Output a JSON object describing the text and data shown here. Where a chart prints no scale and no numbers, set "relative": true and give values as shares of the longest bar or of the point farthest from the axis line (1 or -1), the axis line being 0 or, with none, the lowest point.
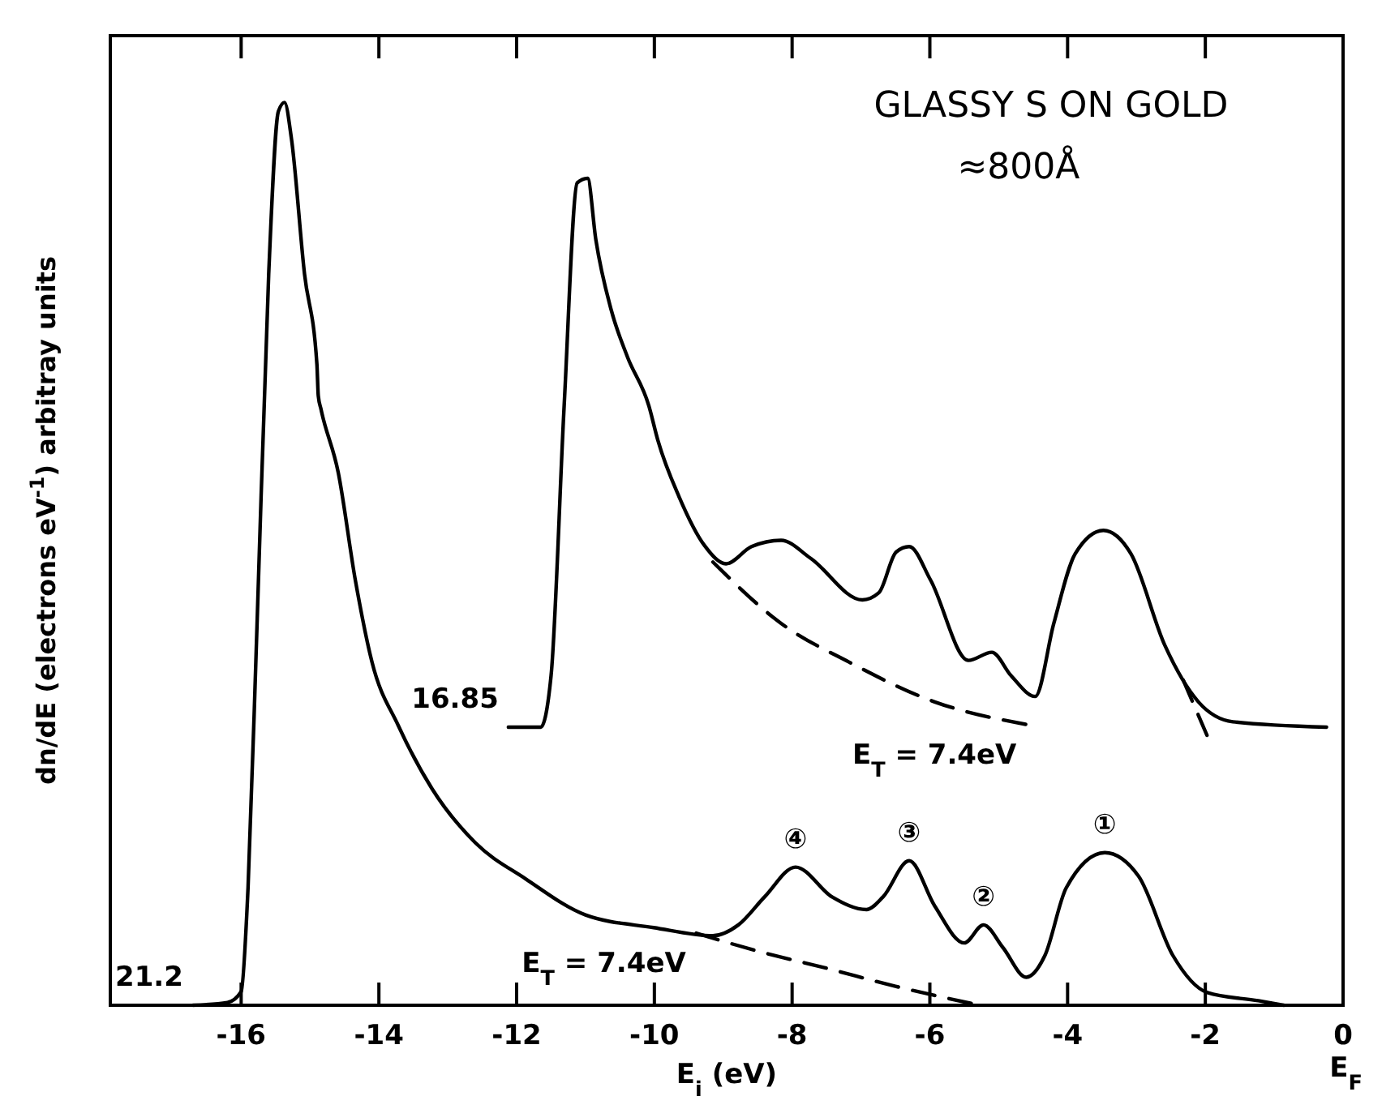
{
  "chart_data": {
    "type": "line",
    "title": "GLASSY S ON GOLD",
    "subtitle": "≈800Å",
    "xlabel": "E$_{i}$ (eV)",
    "ylabel": "dn/dE (electrons eV$^{-1}$) arbitray units",
    "relative": true,
    "xlim": [
      -17.9,
      0
    ],
    "xticks": [
      -16,
      -14,
      -12,
      -10,
      -8,
      -6,
      -4,
      -2,
      0
    ],
    "series": [
      {
        "color": "#000000",
        "line_style": "solid",
        "x": [
          -16.7,
          -16.2,
          -16.0,
          -15.9,
          -15.77,
          -15.6,
          -15.46,
          -15.37,
          -15.27,
          -15.08,
          -14.9,
          -14.88,
          -14.84,
          -14.59,
          -14.34,
          -14.1,
          -13.72,
          -13.23,
          -12.6,
          -11.87,
          -11.0,
          -10.01,
          -9.15,
          -8.78,
          -8.4,
          -7.95,
          -7.42,
          -6.92,
          -6.68,
          -6.3,
          -5.93,
          -5.5,
          -5.22,
          -4.94,
          -4.6,
          -4.33,
          -4.02,
          -3.46,
          -2.97,
          -2.47,
          -1.97,
          -1.23,
          -0.86
        ],
        "values": [
          0,
          0.003,
          0.015,
          0.13,
          0.42,
          0.81,
          0.99,
          1,
          0.96,
          0.81,
          0.71,
          0.675,
          0.66,
          0.59,
          0.47,
          0.38,
          0.31,
          0.24,
          0.18,
          0.14,
          0.1,
          0.086,
          0.077,
          0.089,
          0.12,
          0.153,
          0.12,
          0.106,
          0.12,
          0.16,
          0.11,
          0.069,
          0.089,
          0.064,
          0.031,
          0.055,
          0.13,
          0.169,
          0.143,
          0.055,
          0.014,
          0.005,
          0
        ]
      },
      {
        "color": "#000000",
        "line_style": "dashed",
        "x": [
          -5.4,
          -6.5,
          -7.5,
          -8.5,
          -9.4
        ],
        "values": [
          0.002,
          0.021,
          0.041,
          0.06,
          0.08
        ]
      },
      {
        "color": "#000000",
        "line_style": "solid",
        "x": [
          -12.12,
          -11.65,
          -11.5,
          -11.31,
          -11.12,
          -10.97,
          -10.85,
          -10.63,
          -10.39,
          -10.08,
          -9.95,
          -9.64,
          -9.27,
          -8.96,
          -8.59,
          -8.16,
          -7.73,
          -6.98,
          -6.74,
          -6.49,
          -6.3,
          -5.99,
          -5.44,
          -5.1,
          -4.82,
          -4.47,
          -4.2,
          -3.89,
          -3.48,
          -3.08,
          -2.59,
          -2.1,
          -1.6,
          -0.24
        ],
        "values": [
          0.308,
          0.308,
          0.365,
          0.664,
          0.911,
          0.916,
          0.848,
          0.771,
          0.718,
          0.664,
          0.626,
          0.563,
          0.509,
          0.489,
          0.508,
          0.515,
          0.495,
          0.449,
          0.457,
          0.502,
          0.508,
          0.471,
          0.382,
          0.391,
          0.365,
          0.342,
          0.423,
          0.5,
          0.526,
          0.5,
          0.399,
          0.336,
          0.314,
          0.308
        ]
      },
      {
        "color": "#000000",
        "line_style": "dashed",
        "x": [
          -9.15,
          -8.16,
          -7.17,
          -5.93,
          -4.6
        ],
        "values": [
          0.491,
          0.423,
          0.38,
          0.336,
          0.311
        ]
      },
      {
        "color": "#000000",
        "line_style": "dashed",
        "x": [
          -2.32,
          -1.97
        ],
        "values": [
          0.36,
          0.298
        ]
      }
    ],
    "annotations": [
      {
        "text": "21.2",
        "x": -16.7,
        "y": 0
      },
      {
        "text": "16.85",
        "x": -12.12,
        "y": 0.308
      },
      {
        "text": "E$_{T}$ = 7.4eV",
        "x": -9.4,
        "y": 0.08
      },
      {
        "text": "E$_{T}$ = 7.4eV",
        "x": -4.6,
        "y": 0.311
      },
      {
        "text": "④",
        "x": -7.95,
        "y": 0.153
      },
      {
        "text": "③",
        "x": -6.3,
        "y": 0.16
      },
      {
        "text": "②",
        "x": -5.22,
        "y": 0.089
      },
      {
        "text": "①",
        "x": -3.46,
        "y": 0.169
      },
      "E$_{F}$"
    ]
  }
}
